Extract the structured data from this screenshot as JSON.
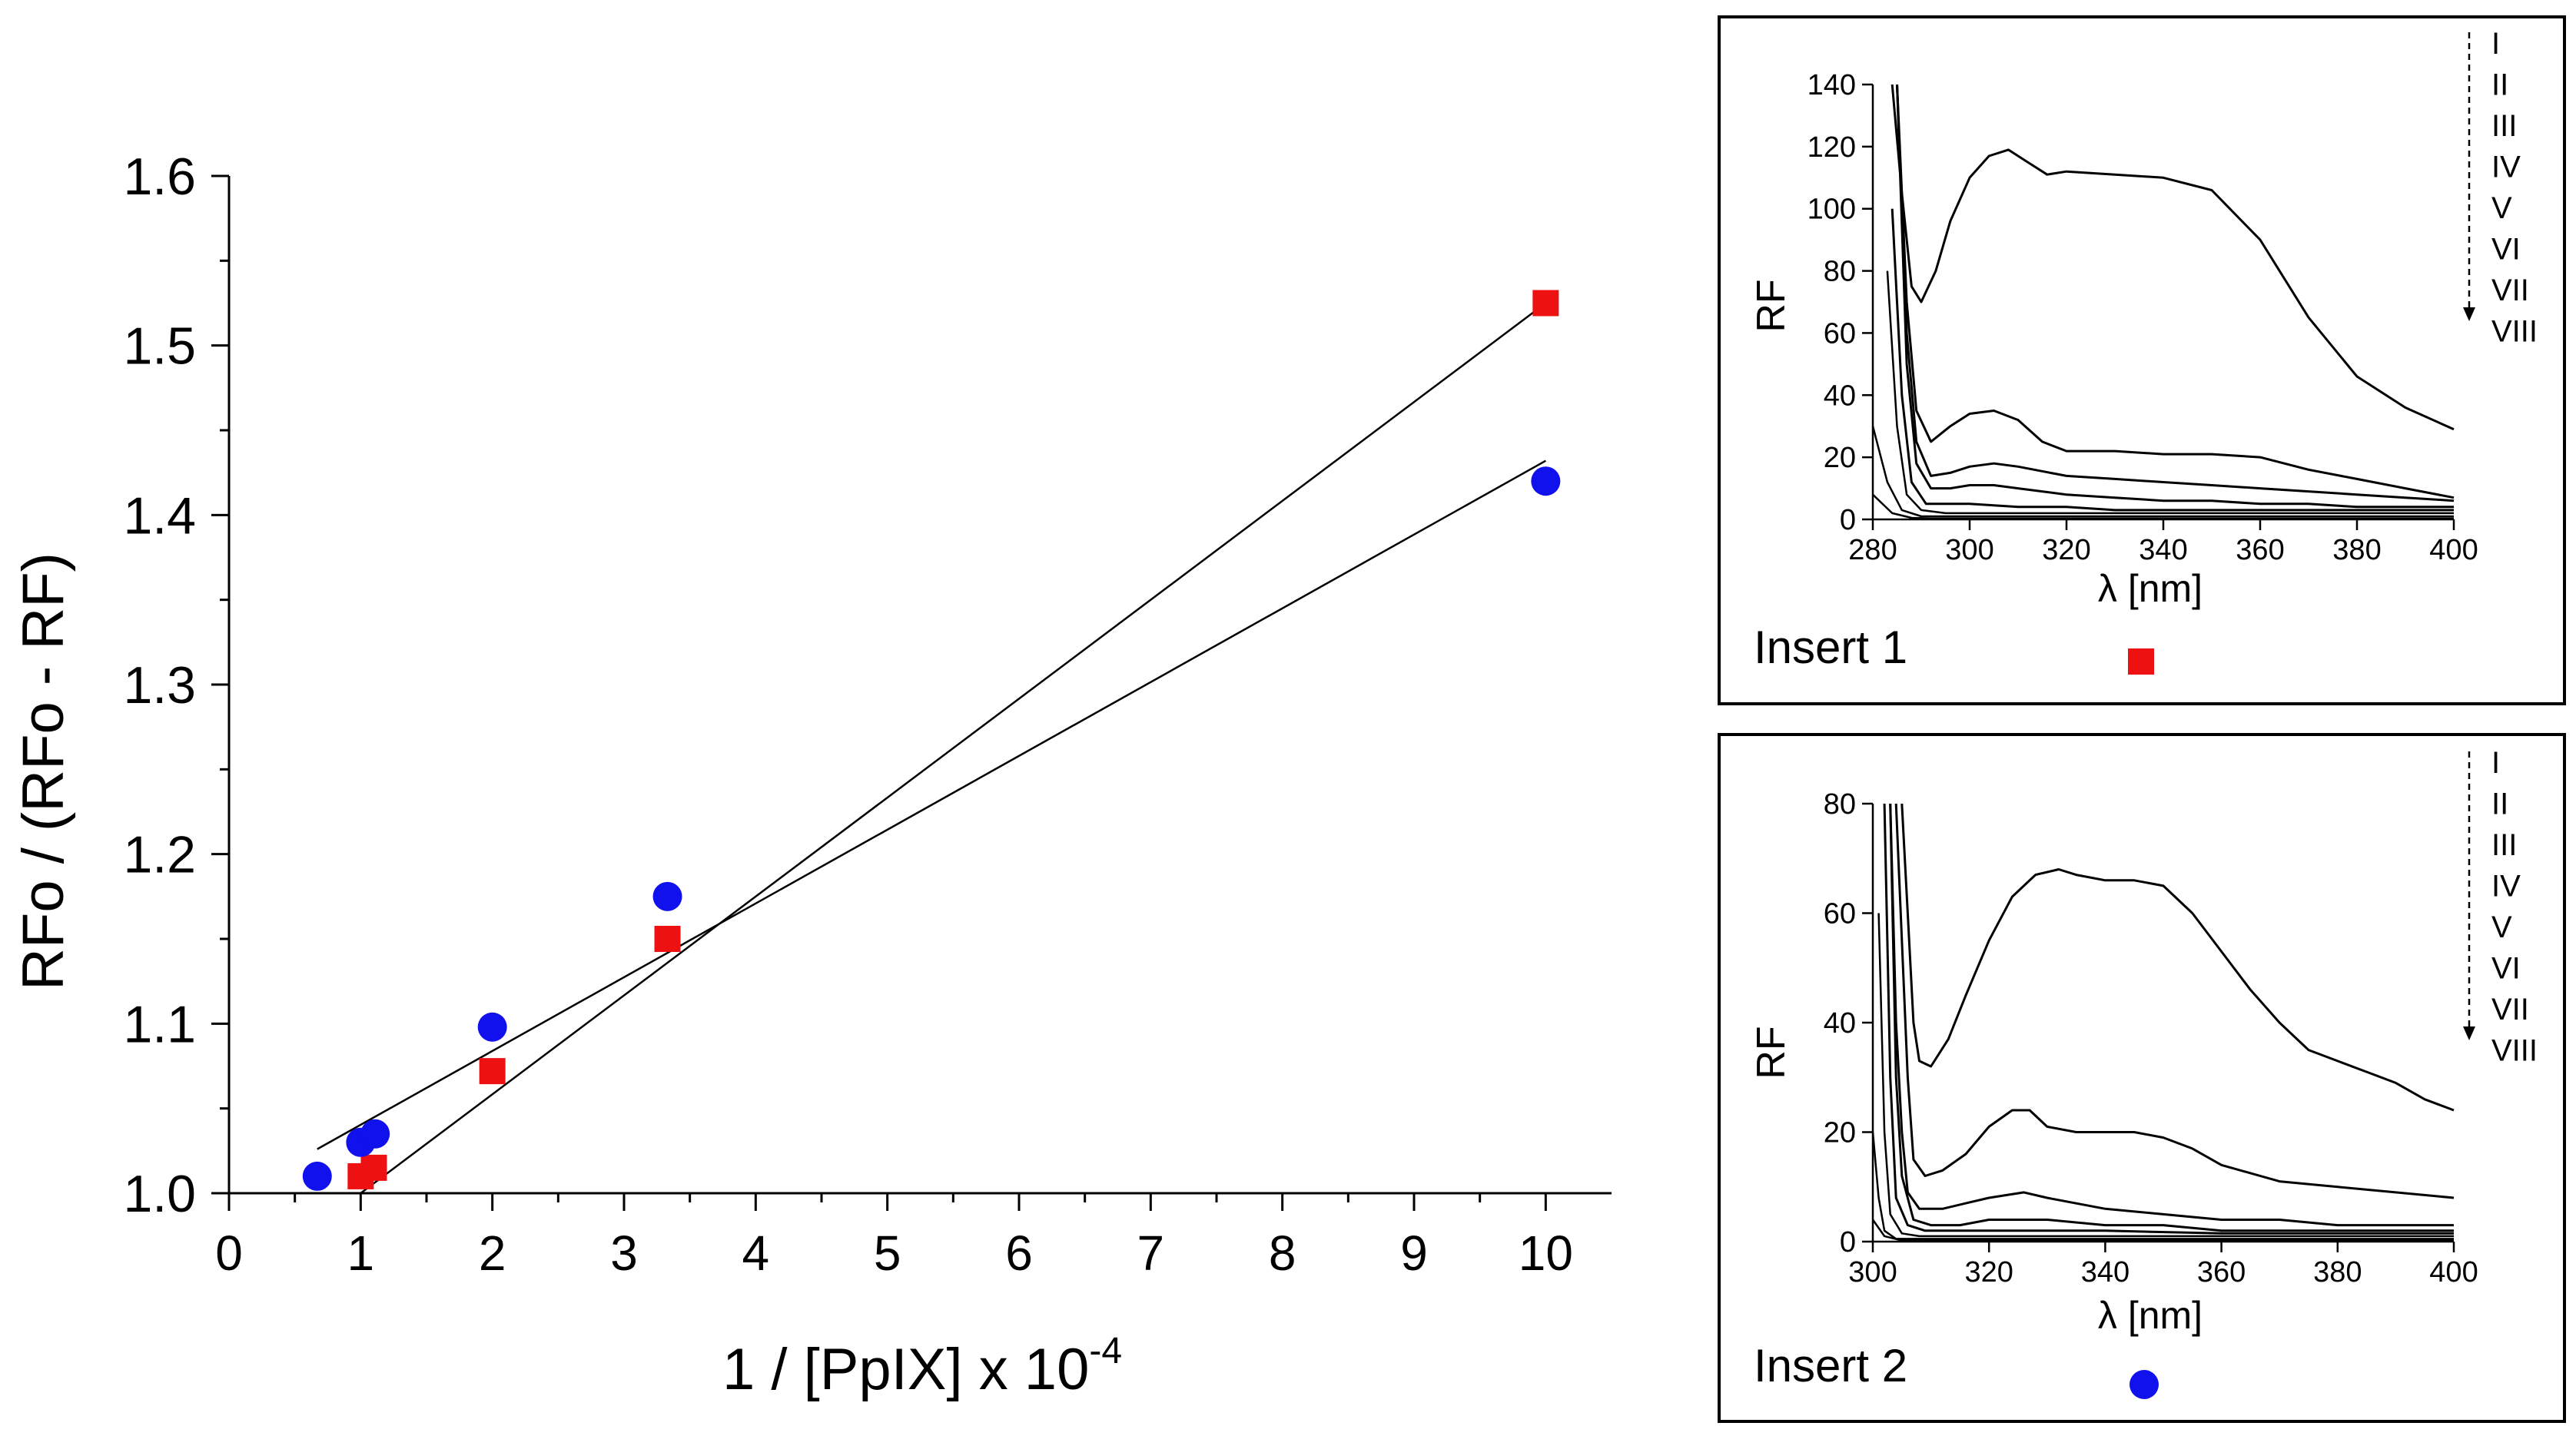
{
  "chart_data": [
    {
      "id": "main",
      "type": "scatter",
      "title": "",
      "xlabel": "1 / [PpIX] x 10",
      "xlabel_exponent": "-4",
      "ylabel": "RFo / (RFo - RF)",
      "xlim": [
        0,
        10.5
      ],
      "ylim": [
        1.0,
        1.6
      ],
      "xticks": [
        0,
        1,
        2,
        3,
        4,
        5,
        6,
        7,
        8,
        9,
        10
      ],
      "yticks": [
        1.0,
        1.1,
        1.2,
        1.3,
        1.4,
        1.5,
        1.6
      ],
      "series": [
        {
          "name": "Insert 1",
          "marker": "square",
          "color": "#ee1111",
          "x": [
            1.0,
            1.1,
            2.0,
            3.33,
            10.0
          ],
          "y": [
            1.01,
            1.015,
            1.072,
            1.15,
            1.525
          ],
          "fit": {
            "x": [
              1.0,
              10.0
            ],
            "y": [
              1.0,
              1.525
            ]
          }
        },
        {
          "name": "Insert 2",
          "marker": "circle",
          "color": "#1111ee",
          "x": [
            0.67,
            1.0,
            1.11,
            2.0,
            3.33,
            10.0
          ],
          "y": [
            1.01,
            1.03,
            1.035,
            1.098,
            1.175,
            1.42
          ],
          "fit": {
            "x": [
              0.67,
              10.0
            ],
            "y": [
              1.026,
              1.432
            ]
          }
        }
      ]
    },
    {
      "id": "insert1",
      "type": "line",
      "label": "Insert 1",
      "marker_color": "#ee1111",
      "xlabel": "λ [nm]",
      "ylabel": "RF",
      "xlim": [
        280,
        400
      ],
      "ylim": [
        0,
        140
      ],
      "xticks": [
        280,
        300,
        320,
        340,
        360,
        380,
        400
      ],
      "yticks": [
        0,
        20,
        40,
        60,
        80,
        100,
        120,
        140
      ],
      "legend_order": [
        "I",
        "II",
        "III",
        "IV",
        "V",
        "VI",
        "VII",
        "VIII"
      ],
      "series": [
        {
          "name": "I",
          "x": [
            284,
            286,
            288,
            290,
            293,
            296,
            300,
            304,
            308,
            312,
            316,
            320,
            330,
            340,
            350,
            360,
            370,
            380,
            390,
            400
          ],
          "y": [
            140,
            105,
            75,
            70,
            80,
            96,
            110,
            117,
            119,
            115,
            111,
            112,
            111,
            110,
            106,
            90,
            65,
            46,
            36,
            29
          ]
        },
        {
          "name": "II",
          "x": [
            285,
            287,
            289,
            292,
            296,
            300,
            305,
            310,
            315,
            320,
            330,
            340,
            350,
            360,
            370,
            380,
            390,
            400
          ],
          "y": [
            140,
            70,
            35,
            25,
            30,
            34,
            35,
            32,
            25,
            22,
            22,
            21,
            21,
            20,
            16,
            13,
            10,
            7
          ]
        },
        {
          "name": "III",
          "x": [
            285,
            287,
            289,
            292,
            296,
            300,
            305,
            310,
            320,
            330,
            340,
            350,
            360,
            370,
            380,
            390,
            400
          ],
          "y": [
            140,
            60,
            25,
            14,
            15,
            17,
            18,
            17,
            14,
            13,
            12,
            11,
            10,
            9,
            8,
            7,
            6
          ]
        },
        {
          "name": "IV",
          "x": [
            285,
            287,
            289,
            292,
            296,
            300,
            305,
            310,
            320,
            330,
            340,
            350,
            360,
            370,
            380,
            390,
            400
          ],
          "y": [
            140,
            50,
            18,
            10,
            10,
            11,
            11,
            10,
            8,
            7,
            6,
            6,
            5,
            5,
            4,
            4,
            4
          ]
        },
        {
          "name": "V",
          "x": [
            284,
            286,
            288,
            291,
            295,
            300,
            310,
            320,
            330,
            340,
            350,
            360,
            380,
            400
          ],
          "y": [
            100,
            40,
            12,
            5,
            5,
            5,
            4,
            4,
            3,
            3,
            3,
            3,
            3,
            3
          ]
        },
        {
          "name": "VI",
          "x": [
            283,
            285,
            287,
            290,
            295,
            300,
            320,
            340,
            360,
            380,
            400
          ],
          "y": [
            80,
            30,
            8,
            3,
            2,
            2,
            2,
            2,
            2,
            2,
            2
          ]
        },
        {
          "name": "VII",
          "x": [
            280,
            283,
            286,
            290,
            295,
            300,
            340,
            400
          ],
          "y": [
            30,
            12,
            3,
            1,
            1,
            1,
            1,
            1
          ]
        },
        {
          "name": "VIII",
          "x": [
            280,
            284,
            288,
            292,
            300,
            340,
            400
          ],
          "y": [
            8,
            2,
            0.5,
            0.3,
            0.3,
            0.3,
            0.3
          ]
        }
      ]
    },
    {
      "id": "insert2",
      "type": "line",
      "label": "Insert 2",
      "marker_color": "#1111ee",
      "xlabel": "λ [nm]",
      "ylabel": "RF",
      "xlim": [
        300,
        400
      ],
      "ylim": [
        0,
        80
      ],
      "xticks": [
        300,
        320,
        340,
        360,
        380,
        400
      ],
      "yticks": [
        0,
        20,
        40,
        60,
        80
      ],
      "legend_order": [
        "I",
        "II",
        "III",
        "IV",
        "V",
        "VI",
        "VII",
        "VIII"
      ],
      "series": [
        {
          "name": "I",
          "x": [
            305,
            306,
            307,
            308,
            310,
            313,
            316,
            320,
            324,
            328,
            332,
            335,
            340,
            345,
            350,
            355,
            360,
            365,
            370,
            375,
            380,
            385,
            390,
            395,
            400
          ],
          "y": [
            80,
            60,
            40,
            33,
            32,
            37,
            45,
            55,
            63,
            67,
            68,
            67,
            66,
            66,
            65,
            60,
            53,
            46,
            40,
            35,
            33,
            31,
            29,
            26,
            24
          ]
        },
        {
          "name": "II",
          "x": [
            304,
            305,
            306,
            307,
            309,
            312,
            316,
            320,
            324,
            327,
            330,
            335,
            340,
            345,
            350,
            355,
            360,
            370,
            380,
            390,
            400
          ],
          "y": [
            80,
            55,
            30,
            15,
            12,
            13,
            16,
            21,
            24,
            24,
            21,
            20,
            20,
            20,
            19,
            17,
            14,
            11,
            10,
            9,
            8
          ]
        },
        {
          "name": "III",
          "x": [
            303,
            304,
            305,
            306,
            308,
            312,
            316,
            320,
            326,
            330,
            340,
            350,
            360,
            370,
            380,
            390,
            400
          ],
          "y": [
            80,
            40,
            20,
            9,
            6,
            6,
            7,
            8,
            9,
            8,
            6,
            5,
            4,
            4,
            3,
            3,
            3
          ]
        },
        {
          "name": "IV",
          "x": [
            303,
            304,
            305,
            307,
            310,
            315,
            320,
            326,
            330,
            340,
            350,
            360,
            380,
            400
          ],
          "y": [
            80,
            30,
            12,
            4,
            3,
            3,
            4,
            4,
            4,
            3,
            3,
            2,
            2,
            2
          ]
        },
        {
          "name": "V",
          "x": [
            302,
            303,
            304,
            306,
            309,
            315,
            320,
            340,
            360,
            380,
            400
          ],
          "y": [
            80,
            30,
            8,
            3,
            2,
            2,
            2,
            2,
            1.5,
            1.5,
            1.5
          ]
        },
        {
          "name": "VI",
          "x": [
            301,
            302,
            303,
            305,
            308,
            320,
            340,
            400
          ],
          "y": [
            60,
            20,
            5,
            1.5,
            1,
            1,
            1,
            1
          ]
        },
        {
          "name": "VII",
          "x": [
            300,
            301,
            302,
            304,
            307,
            320,
            400
          ],
          "y": [
            20,
            8,
            2,
            0.5,
            0.5,
            0.5,
            0.5
          ]
        },
        {
          "name": "VIII",
          "x": [
            300,
            302,
            305,
            310,
            400
          ],
          "y": [
            4,
            1,
            0.2,
            0.2,
            0.2
          ]
        }
      ]
    }
  ]
}
